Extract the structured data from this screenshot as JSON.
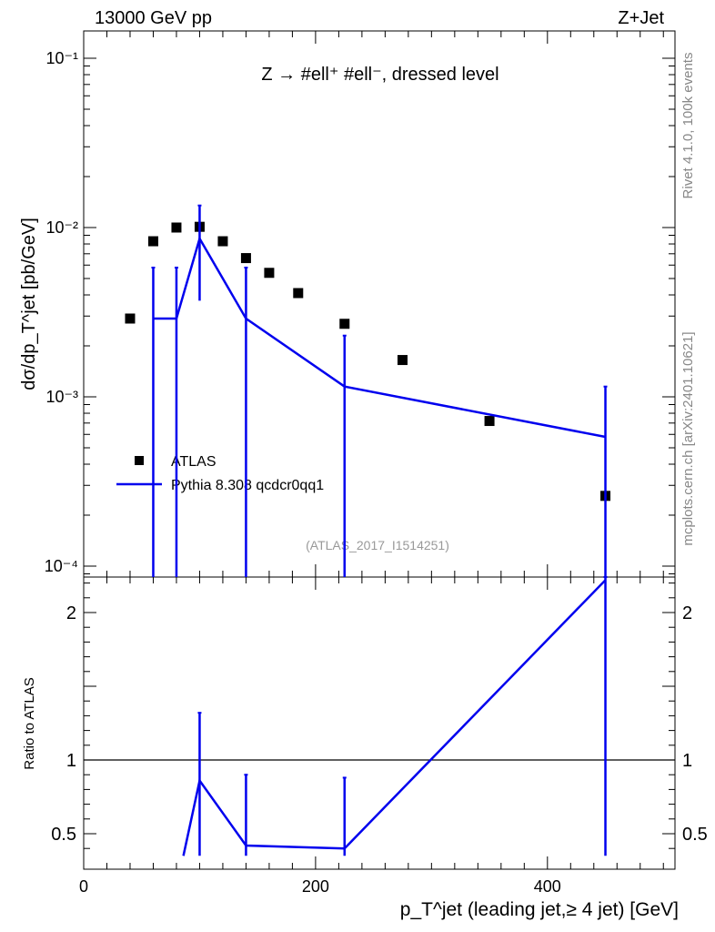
{
  "header": {
    "energy_label": "13000 GeV pp",
    "process_label": "Z+Jet"
  },
  "side_labels": {
    "rivet": "Rivet 4.1.0,  100k events",
    "source": "mcplots.cern.ch [arXiv:2401.10621]"
  },
  "colors": {
    "data": "#000000",
    "mc": "#0000ee",
    "watermark": "#999999"
  },
  "chart_data": [
    {
      "type": "scatter",
      "panel": "main",
      "title": "Z → #ell⁺ #ell⁻, dressed level",
      "analysis_label": "(ATLAS_2017_I1514251)",
      "ylabel": "dσ/dp_T^jet [pb/GeV]",
      "yscale": "log",
      "ylim": [
        9e-05,
        0.15
      ],
      "xlim": [
        0,
        510
      ],
      "y_tick_labels": [
        "10⁻⁴",
        "10⁻³",
        "10⁻²",
        "10⁻¹"
      ],
      "legend_position": "middle-left",
      "series": [
        {
          "name": "ATLAS",
          "style": "markers",
          "x": [
            40,
            60,
            80,
            100,
            120,
            140,
            160,
            185,
            225,
            275,
            350,
            450
          ],
          "y": [
            0.0029,
            0.0083,
            0.01,
            0.0101,
            0.0083,
            0.0066,
            0.0054,
            0.0041,
            0.0027,
            0.00165,
            0.00072,
            0.00026
          ]
        },
        {
          "name": "Pythia 8.308 qcdcr0qq1",
          "style": "line",
          "x": [
            60,
            80,
            100,
            140,
            225,
            450
          ],
          "y": [
            0.0029,
            0.0029,
            0.0086,
            0.0029,
            0.00115,
            0.00058
          ],
          "err_up": [
            0.0058,
            0.0058,
            0.0135,
            0.0058,
            0.0023,
            0.00115
          ],
          "err_down": [
            1e-05,
            1e-05,
            0.0037,
            1e-05,
            1e-05,
            1e-05
          ]
        }
      ]
    },
    {
      "type": "line",
      "panel": "ratio",
      "ylabel": "Ratio to ATLAS",
      "xlabel": "p_T^jet (leading jet,≥ 4 jet) [GeV]",
      "xlim": [
        0,
        510
      ],
      "ylim": [
        0.35,
        2.3
      ],
      "x_ticks": [
        0,
        200,
        400
      ],
      "y_ticks": [
        0.5,
        1,
        2
      ],
      "reference_line": 1,
      "series": [
        {
          "name": "Pythia 8.308 qcdcr0qq1",
          "x": [
            86,
            100,
            140,
            225,
            450
          ],
          "y": [
            0.35,
            0.86,
            0.42,
            0.4,
            2.22
          ],
          "err_x": [
            100,
            140,
            225,
            450
          ],
          "err_up": [
            1.32,
            0.9,
            0.88,
            2.3
          ],
          "err_down": [
            0.35,
            0.35,
            0.35,
            0.35
          ]
        }
      ]
    }
  ]
}
